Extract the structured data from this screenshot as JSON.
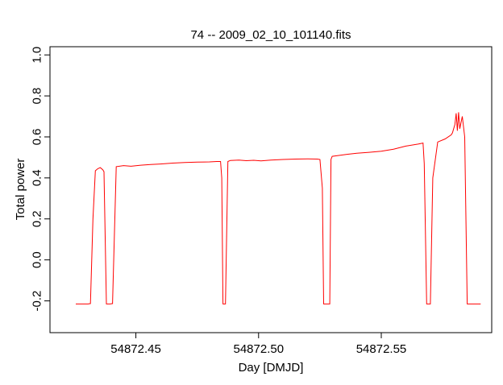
{
  "chart_data": {
    "type": "line",
    "title": "74 -- 2009_02_10_101140.fits",
    "xlabel": "Day [DMJD]",
    "ylabel": "Total power",
    "xlim": [
      54872.415,
      54872.595
    ],
    "ylim": [
      -0.355,
      1.04
    ],
    "x_ticks": [
      54872.45,
      54872.5,
      54872.55
    ],
    "x_tick_labels": [
      "54872.45",
      "54872.50",
      "54872.55"
    ],
    "y_ticks": [
      -0.2,
      0.0,
      0.2,
      0.4,
      0.6,
      0.8,
      1.0
    ],
    "y_tick_labels": [
      "-0.2",
      "0.0",
      "0.2",
      "0.4",
      "0.6",
      "0.8",
      "1.0"
    ],
    "grid": false,
    "series": [
      {
        "color": "#ff0000",
        "x": [
          54872.4255,
          54872.4285,
          54872.4305,
          54872.4315,
          54872.4325,
          54872.4335,
          54872.4345,
          54872.4355,
          54872.4365,
          54872.437,
          54872.438,
          54872.4395,
          54872.4405,
          54872.442,
          54872.445,
          54872.448,
          54872.452,
          54872.456,
          54872.46,
          54872.465,
          54872.47,
          54872.475,
          54872.48,
          54872.483,
          54872.4845,
          54872.485,
          54872.4855,
          54872.4865,
          54872.4875,
          54872.4885,
          54872.492,
          54872.495,
          54872.498,
          54872.501,
          54872.505,
          54872.51,
          54872.515,
          54872.52,
          54872.524,
          54872.525,
          54872.526,
          54872.5265,
          54872.5275,
          54872.529,
          54872.5295,
          54872.53,
          54872.533,
          54872.536,
          54872.54,
          54872.545,
          54872.55,
          54872.555,
          54872.56,
          54872.565,
          54872.567,
          54872.5675,
          54872.5685,
          54872.57,
          54872.571,
          54872.573,
          54872.576,
          54872.5785,
          54872.579,
          54872.58,
          54872.5805,
          54872.581,
          54872.5815,
          54872.582,
          54872.583,
          54872.584,
          54872.585,
          54872.587,
          54872.5905
        ],
        "y": [
          -0.215,
          -0.215,
          -0.215,
          -0.213,
          0.2,
          0.435,
          0.445,
          0.45,
          0.44,
          0.43,
          -0.215,
          -0.215,
          -0.213,
          0.455,
          0.46,
          0.457,
          0.462,
          0.465,
          0.468,
          0.472,
          0.475,
          0.477,
          0.478,
          0.48,
          0.48,
          0.4,
          -0.215,
          -0.215,
          0.48,
          0.485,
          0.487,
          0.484,
          0.486,
          0.483,
          0.487,
          0.49,
          0.492,
          0.493,
          0.492,
          0.49,
          0.35,
          -0.215,
          -0.215,
          -0.215,
          0.49,
          0.505,
          0.51,
          0.515,
          0.52,
          0.525,
          0.53,
          0.54,
          0.555,
          0.565,
          0.57,
          0.47,
          -0.215,
          -0.215,
          0.4,
          0.575,
          0.59,
          0.61,
          0.62,
          0.66,
          0.715,
          0.63,
          0.72,
          0.64,
          0.7,
          0.6,
          -0.215,
          -0.215,
          -0.215
        ]
      }
    ]
  }
}
